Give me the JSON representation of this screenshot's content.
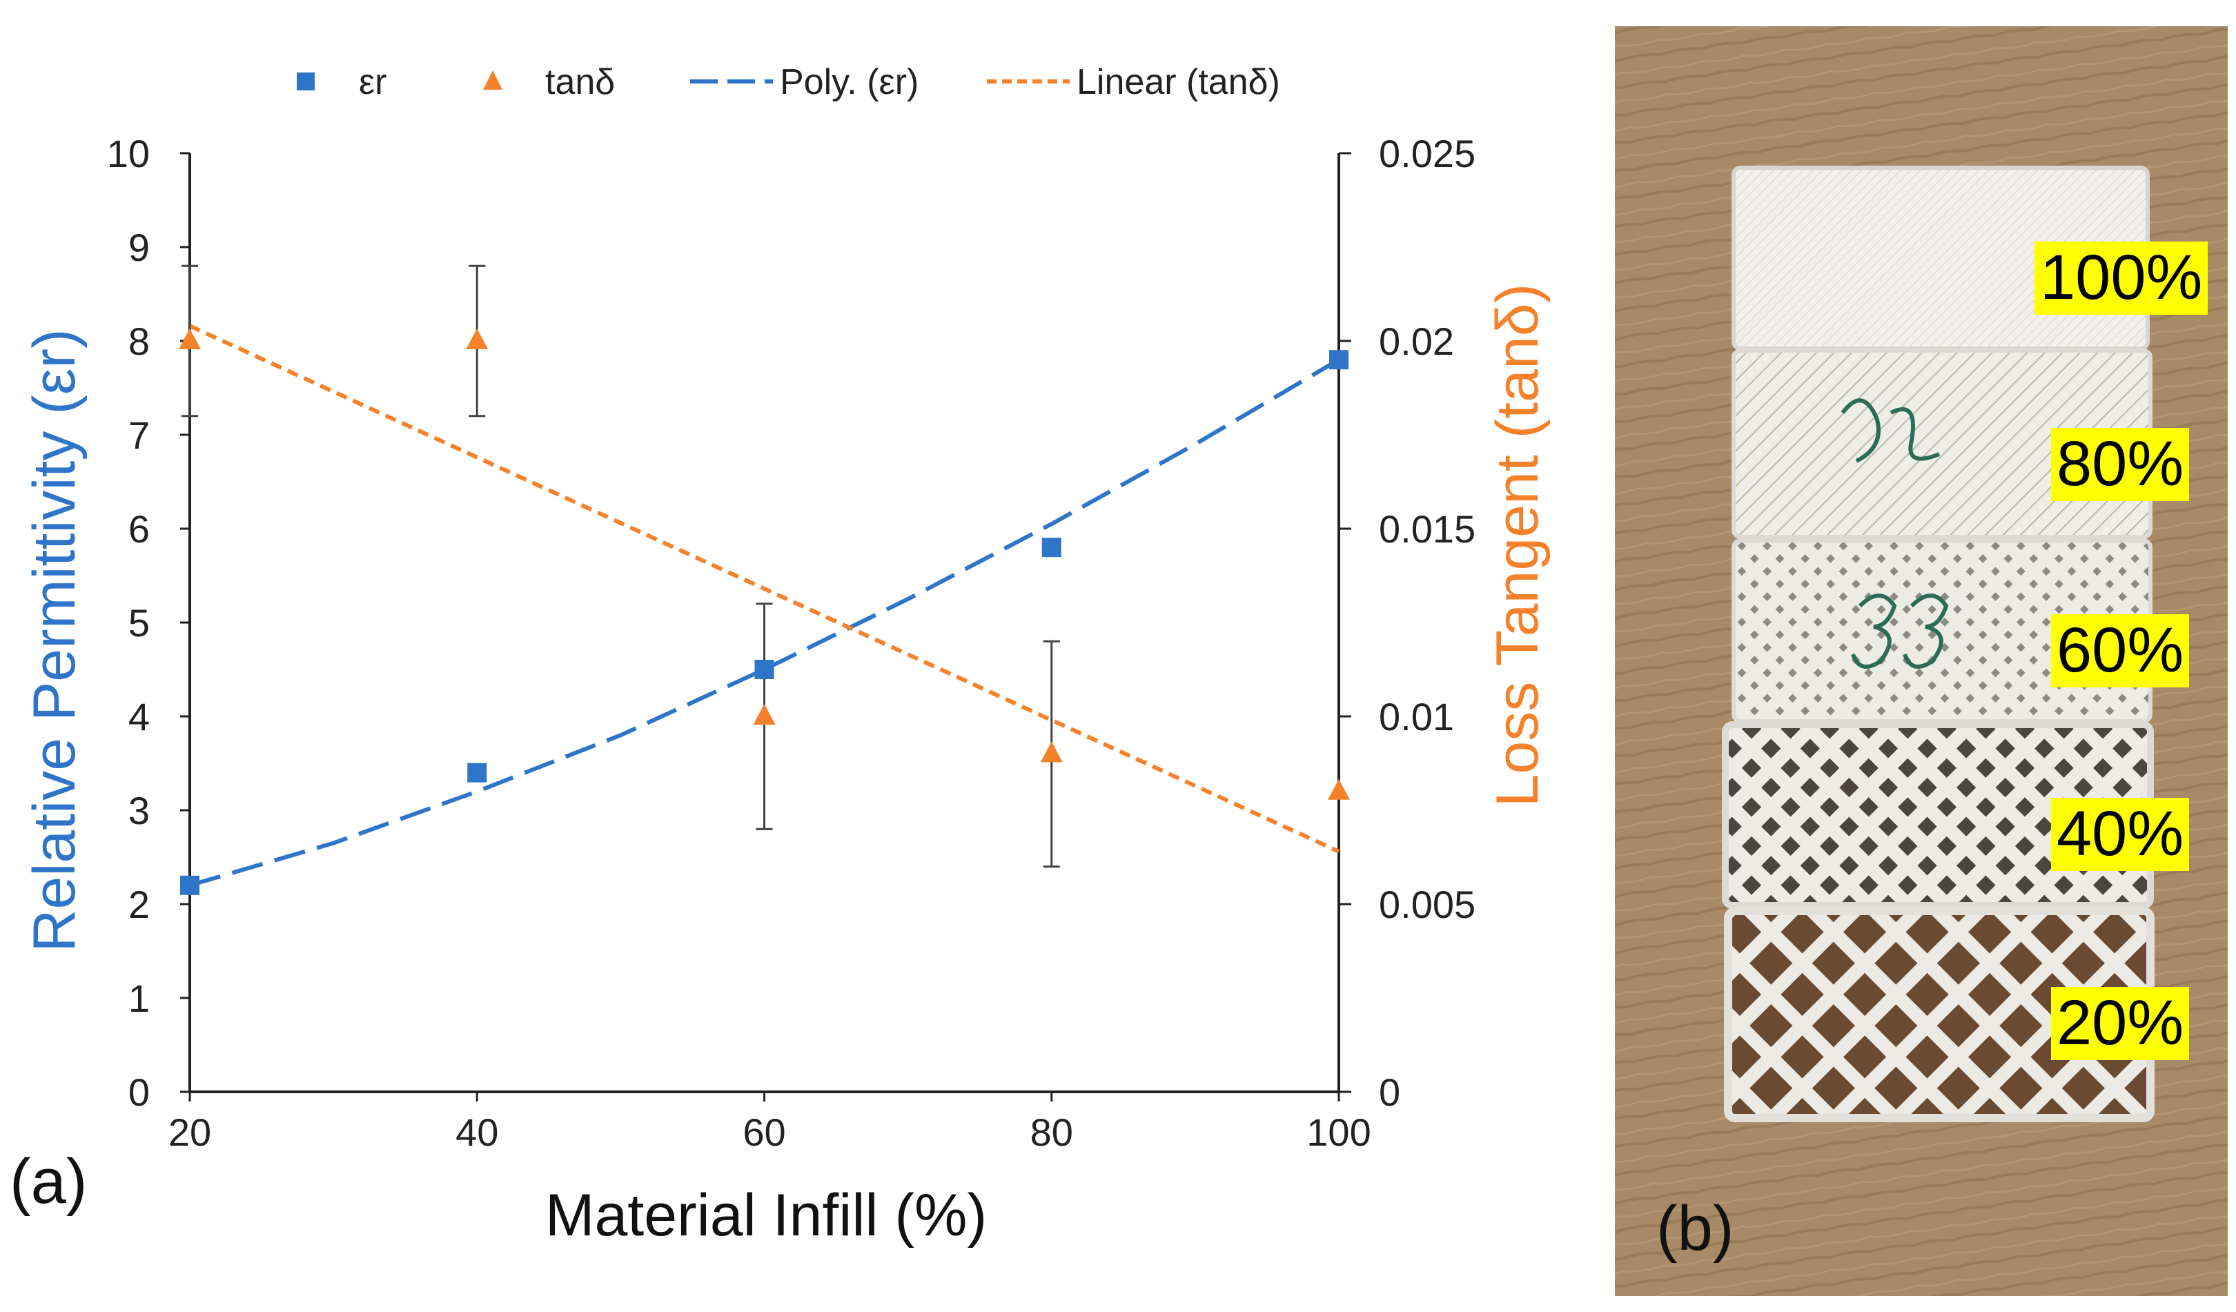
{
  "chart_data": {
    "type": "scatter",
    "xlabel": "Material Infill (%)",
    "ylabel_left": "Relative Permittivity (εr)",
    "ylabel_right": "Loss Tangent (tanδ)",
    "xlim": [
      20,
      100
    ],
    "ylim_left": [
      0,
      10
    ],
    "ylim_right": [
      0,
      0.025
    ],
    "x_ticks": [
      "20",
      "40",
      "60",
      "80",
      "100"
    ],
    "y_left_ticks": [
      "0",
      "1",
      "2",
      "3",
      "4",
      "5",
      "6",
      "7",
      "8",
      "9",
      "10"
    ],
    "y_right_ticks": [
      "0",
      "0.005",
      "0.01",
      "0.015",
      "0.02",
      "0.025"
    ],
    "grid": false,
    "legend_position": "top",
    "series": [
      {
        "name": "εr",
        "axis": "left",
        "marker": "square",
        "color": "#2e75c9",
        "x": [
          20,
          40,
          60,
          80,
          100
        ],
        "y": [
          2.2,
          3.4,
          4.5,
          5.8,
          7.8
        ]
      },
      {
        "name": "tanδ",
        "axis": "right",
        "marker": "triangle",
        "color": "#f5822a",
        "x": [
          20,
          40,
          60,
          80,
          100
        ],
        "y": [
          0.02,
          0.02,
          0.01,
          0.009,
          0.008
        ],
        "error_low": [
          0.018,
          0.018,
          0.007,
          0.006,
          0.008
        ],
        "error_high": [
          0.022,
          0.022,
          0.013,
          0.012,
          0.008
        ]
      },
      {
        "name": "Poly. (εr)",
        "axis": "left",
        "style": "long-dash",
        "color": "#2e75c9",
        "x": [
          20,
          30,
          40,
          50,
          60,
          70,
          80,
          90,
          100
        ],
        "y": [
          2.2,
          2.65,
          3.2,
          3.8,
          4.5,
          5.25,
          6.05,
          6.9,
          7.8
        ]
      },
      {
        "name": "Linear (tanδ)",
        "axis": "right",
        "style": "short-dash",
        "color": "#f5822a",
        "x": [
          20,
          100
        ],
        "y": [
          0.0204,
          0.0064
        ]
      }
    ]
  },
  "panels": {
    "a_label": "(a)",
    "b_label": "(b)"
  },
  "photo": {
    "labels": [
      "100%",
      "80%",
      "60%",
      "40%",
      "20%"
    ],
    "tag_color": "#ffff00"
  }
}
